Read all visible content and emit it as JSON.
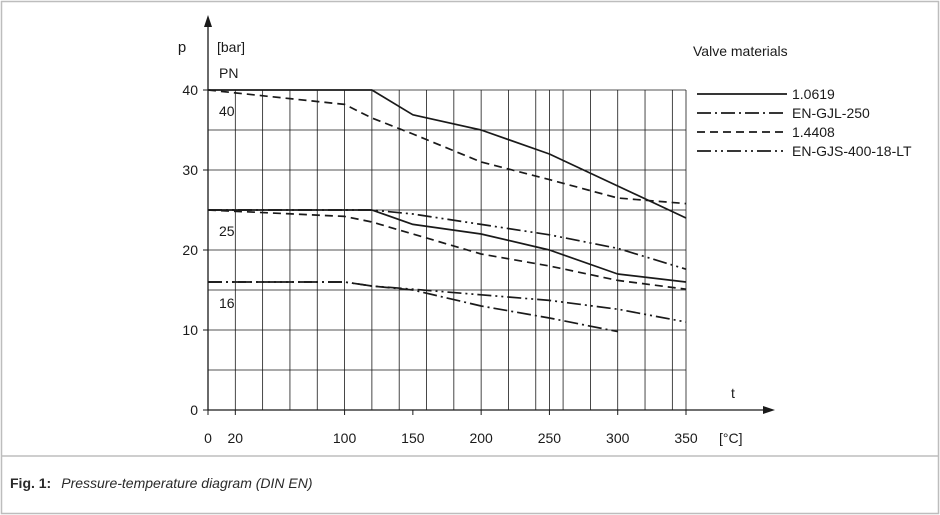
{
  "caption": {
    "label": "Fig. 1:",
    "text": "Pressure-temperature diagram (DIN EN)"
  },
  "chart_data": {
    "type": "line",
    "title": "",
    "xlabel": "t",
    "x_unit": "[°C]",
    "ylabel": "p",
    "y_unit": "[bar]",
    "xlim": [
      0,
      350
    ],
    "ylim": [
      0,
      40
    ],
    "x_ticks": [
      0,
      20,
      100,
      150,
      200,
      250,
      300,
      350
    ],
    "x_tick_labels": [
      "0",
      "20",
      "100",
      "150",
      "200",
      "250",
      "300",
      "350"
    ],
    "y_ticks": [
      0,
      10,
      20,
      30,
      40
    ],
    "y_tick_labels": [
      "0",
      "10",
      "20",
      "30",
      "40"
    ],
    "x_grid": [
      0,
      20,
      40,
      60,
      80,
      100,
      120,
      140,
      160,
      180,
      200,
      220,
      240,
      250,
      260,
      280,
      300,
      320,
      340,
      350
    ],
    "y_grid": [
      0,
      5,
      10,
      15,
      20,
      25,
      30,
      35,
      40
    ],
    "grid": true,
    "legend_title": "Valve materials",
    "legend_position": "top-right",
    "pn_header": "PN",
    "pn_labels": [
      {
        "text": "40",
        "y": 40
      },
      {
        "text": "25",
        "y": 25
      },
      {
        "text": "16",
        "y": 16
      }
    ],
    "series": [
      {
        "name": "1.0619",
        "style": "solid",
        "color": "#1a1a1a",
        "points": [
          [
            0,
            40
          ],
          [
            120,
            40
          ],
          [
            150,
            36.9
          ],
          [
            200,
            35
          ],
          [
            250,
            32
          ],
          [
            300,
            28
          ],
          [
            350,
            24
          ]
        ]
      },
      {
        "name": "1.0619",
        "style": "solid",
        "color": "#1a1a1a",
        "points": [
          [
            0,
            25
          ],
          [
            120,
            25
          ],
          [
            150,
            23.2
          ],
          [
            200,
            22
          ],
          [
            250,
            20
          ],
          [
            300,
            17
          ],
          [
            350,
            16
          ]
        ]
      },
      {
        "name": "EN-GJL-250",
        "style": "dashdot",
        "color": "#1a1a1a",
        "points": [
          [
            0,
            16
          ],
          [
            100,
            16
          ],
          [
            120,
            15.5
          ],
          [
            150,
            15
          ],
          [
            200,
            13
          ],
          [
            250,
            11.5
          ],
          [
            300,
            9.8
          ]
        ]
      },
      {
        "name": "1.4408",
        "style": "dashed",
        "color": "#1a1a1a",
        "points": [
          [
            0,
            40
          ],
          [
            100,
            38.2
          ],
          [
            120,
            36.5
          ],
          [
            150,
            34.5
          ],
          [
            200,
            31
          ],
          [
            250,
            28.8
          ],
          [
            300,
            26.5
          ],
          [
            350,
            25.8
          ]
        ]
      },
      {
        "name": "1.4408",
        "style": "dashed",
        "color": "#1a1a1a",
        "points": [
          [
            0,
            25
          ],
          [
            100,
            24.2
          ],
          [
            120,
            23.5
          ],
          [
            150,
            22
          ],
          [
            200,
            19.5
          ],
          [
            250,
            18
          ],
          [
            300,
            16.2
          ],
          [
            350,
            15.1
          ]
        ]
      },
      {
        "name": "EN-GJS-400-18-LT",
        "style": "dashdotdot",
        "color": "#1a1a1a",
        "points": [
          [
            0,
            25
          ],
          [
            120,
            25
          ],
          [
            150,
            24.5
          ],
          [
            200,
            23.2
          ],
          [
            250,
            21.9
          ],
          [
            300,
            20.2
          ],
          [
            350,
            17.6
          ]
        ]
      },
      {
        "name": "EN-GJS-400-18-LT",
        "style": "dashdotdot",
        "color": "#1a1a1a",
        "points": [
          [
            0,
            16
          ],
          [
            100,
            16
          ],
          [
            120,
            15.5
          ],
          [
            150,
            15.1
          ],
          [
            200,
            14.4
          ],
          [
            250,
            13.7
          ],
          [
            300,
            12.6
          ],
          [
            350,
            11
          ]
        ]
      }
    ],
    "legend": [
      {
        "name": "1.0619",
        "style": "solid"
      },
      {
        "name": "EN-GJL-250",
        "style": "dashdot"
      },
      {
        "name": "1.4408",
        "style": "dashed"
      },
      {
        "name": "EN-GJS-400-18-LT",
        "style": "dashdotdot"
      }
    ]
  },
  "colors": {
    "frame": "#bdbdbd",
    "grid": "#1a1a1a",
    "text": "#1a1a1a"
  }
}
